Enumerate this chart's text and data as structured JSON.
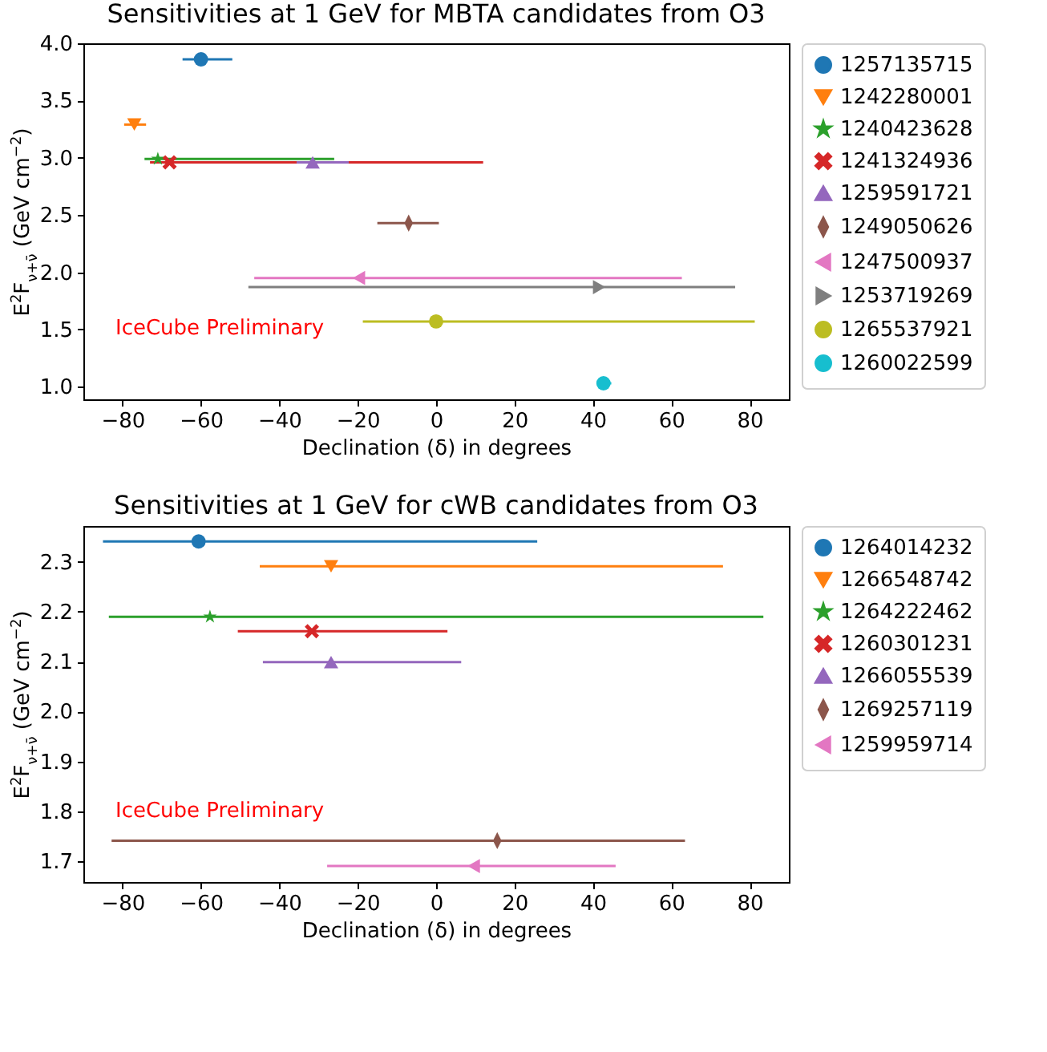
{
  "chart_data": [
    {
      "type": "scatter",
      "title": "Sensitivities at 1 GeV for MBTA candidates from O3",
      "xlabel": "Declination (δ) in degrees",
      "ylabel": "E$^{2}$F$_{ν+ν̄}$ (GeV cm$^{−2}$)",
      "annotations": [
        "IceCube Preliminary"
      ],
      "legend": "right",
      "grid": false,
      "xlim": [
        -90,
        90
      ],
      "xticks": [
        {
          "value": -80,
          "label": "−80"
        },
        {
          "value": -60,
          "label": "−60"
        },
        {
          "value": -40,
          "label": "−40"
        },
        {
          "value": -20,
          "label": "−20"
        },
        0,
        20,
        40,
        60,
        80
      ],
      "ylim": [
        0.89,
        4.0
      ],
      "yticks": [
        {
          "value": 1,
          "label": "1.0"
        },
        1.5,
        {
          "value": 2,
          "label": "2.0"
        },
        2.5,
        {
          "value": 3,
          "label": "3.0"
        },
        3.5,
        {
          "value": 4,
          "label": "4.0"
        }
      ],
      "series": [
        {
          "name": "1257135715",
          "color": "#1f77b4",
          "marker": "circle",
          "x": [
            -60
          ],
          "values": [
            3.86
          ],
          "xerrors": [
            [
              -64.7,
              -52
            ]
          ]
        },
        {
          "name": "1242280001",
          "color": "#ff7f0e",
          "marker": "triangle-down",
          "x": [
            -77
          ],
          "values": [
            3.29
          ],
          "xerrors": [
            [
              -79.6,
              -74
            ]
          ]
        },
        {
          "name": "1240423628",
          "color": "#2ca02c",
          "marker": "star",
          "x": [
            -71
          ],
          "values": [
            2.99
          ],
          "xerrors": [
            [
              -74.4,
              -26
            ]
          ]
        },
        {
          "name": "1241324936",
          "color": "#d62728",
          "marker": "cross",
          "x": [
            -68
          ],
          "values": [
            2.96
          ],
          "xerrors": [
            [
              -73,
              12
            ]
          ]
        },
        {
          "name": "1259591721",
          "color": "#9467bd",
          "marker": "triangle",
          "x": [
            -31.5
          ],
          "values": [
            2.96
          ],
          "xerrors": [
            [
              -35.6,
              -22.3
            ]
          ]
        },
        {
          "name": "1249050626",
          "color": "#8c564b",
          "marker": "diamond",
          "x": [
            -7
          ],
          "values": [
            2.43
          ],
          "xerrors": [
            [
              -15,
              0.7
            ]
          ]
        },
        {
          "name": "1247500937",
          "color": "#e377c2",
          "marker": "triangle-left",
          "x": [
            -19.7
          ],
          "values": [
            1.95
          ],
          "xerrors": [
            [
              -46.4,
              62.7
            ]
          ]
        },
        {
          "name": "1253719269",
          "color": "#7f7f7f",
          "marker": "triangle-right",
          "x": [
            41.6
          ],
          "values": [
            1.87
          ],
          "xerrors": [
            [
              -47.9,
              76.3
            ]
          ]
        },
        {
          "name": "1265537921",
          "color": "#bcbd22",
          "x": [
            0
          ],
          "values": [
            1.57
          ],
          "xerrors": [
            [
              -18.7,
              81.3
            ]
          ]
        },
        {
          "name": "1260022599",
          "color": "#17becf",
          "x": [
            42.7
          ],
          "values": [
            1.03
          ],
          "xerrors": [
            [
              41,
              44.7
            ]
          ]
        }
      ]
    },
    {
      "type": "scatter",
      "title": "Sensitivities at 1 GeV for cWB candidates from O3",
      "xlabel": "Declination (δ) in degrees",
      "ylabel": "E$^{2}$F$_{ν+ν̄}$ (GeV cm$^{−2}$)",
      "annotations": [
        "IceCube Preliminary"
      ],
      "legend": "right",
      "grid": false,
      "xlim": [
        -90,
        90
      ],
      "xticks": [
        {
          "value": -80,
          "label": "−80"
        },
        {
          "value": -60,
          "label": "−60"
        },
        {
          "value": -40,
          "label": "−40"
        },
        {
          "value": -20,
          "label": "−20"
        },
        0,
        20,
        40,
        60,
        80
      ],
      "ylim": [
        1.658,
        2.372
      ],
      "yticks": [
        1.7,
        1.8,
        1.9,
        {
          "value": 2,
          "label": "2.0"
        },
        2.1,
        2.2,
        2.3
      ],
      "series": [
        {
          "name": "1264014232",
          "color": "#1f77b4",
          "marker": "circle",
          "x": [
            -60.6
          ],
          "values": [
            2.341
          ],
          "xerrors": [
            [
              -85,
              25.8
            ]
          ]
        },
        {
          "name": "1266548742",
          "color": "#ff7f0e",
          "marker": "triangle-down",
          "x": [
            -26.8
          ],
          "values": [
            2.291
          ],
          "xerrors": [
            [
              -45,
              73.2
            ]
          ]
        },
        {
          "name": "1264222462",
          "color": "#2ca02c",
          "marker": "star",
          "x": [
            -57.7
          ],
          "values": [
            2.19
          ],
          "xerrors": [
            [
              -83.5,
              83.5
            ]
          ]
        },
        {
          "name": "1260301231",
          "color": "#d62728",
          "marker": "cross",
          "x": [
            -31.7
          ],
          "values": [
            2.161
          ],
          "xerrors": [
            [
              -50.6,
              2.9
            ]
          ]
        },
        {
          "name": "1266055539",
          "color": "#9467bd",
          "marker": "triangle",
          "x": [
            -26.8
          ],
          "values": [
            2.099
          ],
          "xerrors": [
            [
              -44.2,
              6.4
            ]
          ]
        },
        {
          "name": "1269257119",
          "color": "#8c564b",
          "marker": "diamond",
          "x": [
            15.6
          ],
          "values": [
            1.741
          ],
          "xerrors": [
            [
              -82.8,
              63.5
            ]
          ]
        },
        {
          "name": "1259959714",
          "color": "#e377c2",
          "marker": "triangle-left",
          "x": [
            9.6
          ],
          "values": [
            1.69
          ],
          "xerrors": [
            [
              -27.8,
              45.8
            ]
          ]
        }
      ]
    }
  ]
}
